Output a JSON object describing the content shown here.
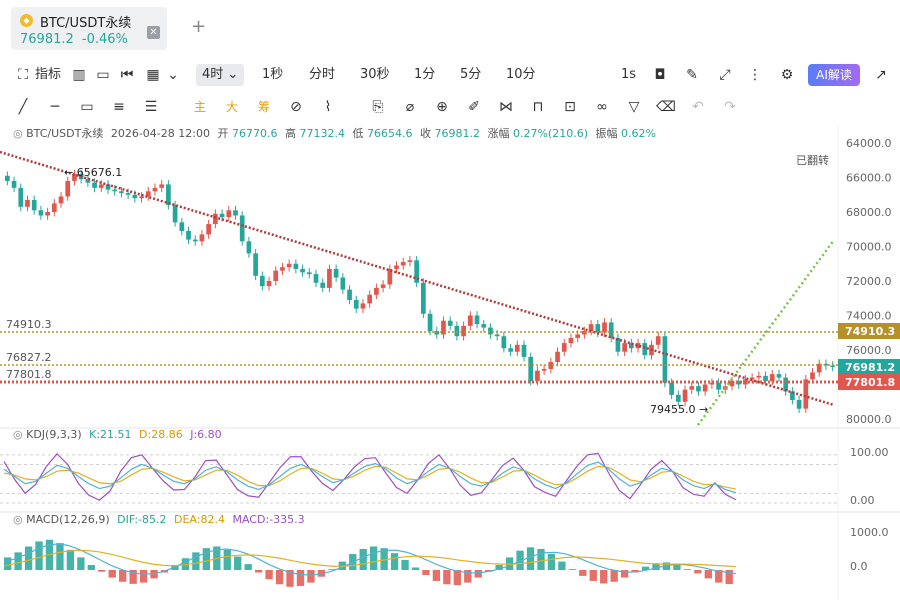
{
  "tab": {
    "title": "BTC/USDT永续",
    "price": "76981.2",
    "change": "-0.46%",
    "coin_icon": "binance-coin-icon",
    "close_icon": "close-icon",
    "add_icon": "plus-icon"
  },
  "toolbar1": {
    "indicators_label": "指标",
    "timeframe_selected": "4时",
    "timeframes": [
      "1秒",
      "分时",
      "30秒",
      "1分",
      "5分",
      "10分"
    ],
    "realtime_label": "1s",
    "ai_label": "AI解读",
    "icons": [
      "indicator-icon",
      "layout-icon",
      "replay-icon",
      "chart-type-icon",
      "chevron-down-icon",
      "camera-icon",
      "pen-icon",
      "expand-icon",
      "more-icon",
      "settings-icon",
      "share-icon"
    ]
  },
  "toolbar2": {
    "tools": [
      "trend-line-icon",
      "horizontal-line-icon",
      "rectangle-icon",
      "parallel-channel-icon",
      "fibonacci-icon"
    ],
    "text_tools": [
      "主",
      "大",
      "筹"
    ],
    "tools_right": [
      "measure-icon",
      "brush-icon",
      "bookmark-icon",
      "ruler-icon",
      "zoom-icon",
      "magic-brush-icon",
      "magnet-icon",
      "lock-icon",
      "note-icon",
      "link-icon",
      "filter-icon",
      "delete-icon",
      "undo-icon",
      "redo-icon"
    ]
  },
  "ohlc_header": {
    "symbol": "BTC/USDT永续",
    "time": "2026-04-28 12:00",
    "open_label": "开",
    "open": "76770.6",
    "high_label": "高",
    "high": "77132.4",
    "low_label": "低",
    "low": "76654.6",
    "close_label": "收",
    "close": "76981.2",
    "change_label": "涨幅",
    "change": "0.27%(210.6)",
    "amp_label": "振幅",
    "amp": "0.62%"
  },
  "flipped_label": "已翻转",
  "annotations": {
    "high_marker": "65676.1",
    "low_marker": "79455.0"
  },
  "levels": {
    "left": [
      "74910.3",
      "76827.2",
      "77801.8"
    ],
    "right_tags": [
      {
        "value": "74910.3",
        "color": "#b8902a"
      },
      {
        "value": "76981.2",
        "color": "#26a69a"
      },
      {
        "value": "77801.8",
        "color": "#e0574d"
      }
    ]
  },
  "kdj": {
    "label": "KDJ(9,3,3)",
    "k_label": "K:21.51",
    "d_label": "D:28.86",
    "j_label": "J:6.80",
    "axis_ticks": [
      "100.00",
      "0.00"
    ]
  },
  "macd": {
    "label": "MACD(12,26,9)",
    "dif_label": "DIF:-85.2",
    "dea_label": "DEA:82.4",
    "macd_label": "MACD:-335.3",
    "axis_ticks": [
      "1000.0",
      "0.0"
    ]
  },
  "colors": {
    "up": "#26a69a",
    "down": "#e0574d",
    "trendline": "#b03a3a",
    "green_trend": "#7cc242",
    "level_gold": "#b8902a",
    "k_line": "#9b4fc4",
    "d_line": "#e3b020",
    "j_line": "#4fb2d6"
  },
  "chart_data": {
    "type": "candlestick",
    "y_axis_inverted": true,
    "y_ticks": [
      64000,
      66000,
      68000,
      70000,
      72000,
      74000,
      76000,
      78000,
      80000
    ],
    "ylim": [
      63000,
      81000
    ],
    "candles_close": [
      66200,
      66600,
      67700,
      67300,
      67900,
      68200,
      68000,
      67500,
      67100,
      66200,
      65800,
      66100,
      66300,
      66600,
      66400,
      66700,
      66800,
      66900,
      67000,
      67200,
      67100,
      66800,
      66600,
      66400,
      67600,
      68600,
      69100,
      69600,
      69700,
      69300,
      68700,
      68100,
      68300,
      67900,
      68200,
      69700,
      70400,
      71700,
      72300,
      72000,
      71400,
      71200,
      71000,
      71300,
      71500,
      71600,
      72100,
      72400,
      71300,
      71800,
      72500,
      73100,
      73600,
      73300,
      72800,
      72400,
      72200,
      71300,
      71100,
      70900,
      70800,
      72100,
      73900,
      74900,
      75100,
      74300,
      74600,
      75200,
      74600,
      74000,
      74500,
      74700,
      75100,
      75200,
      75900,
      76100,
      75700,
      76400,
      77800,
      77200,
      77100,
      76700,
      76100,
      75600,
      75300,
      75100,
      74900,
      74500,
      75000,
      74400,
      75300,
      76100,
      75600,
      75900,
      75600,
      76300,
      75700,
      75200,
      77900,
      78600,
      79000,
      78300,
      78100,
      78400,
      78000,
      77900,
      78300,
      78100,
      77800,
      78000,
      77700,
      77600,
      77500,
      77800,
      77400,
      77600,
      78400,
      78900,
      79400,
      77700,
      77300,
      76800,
      76900,
      76981
    ],
    "kdj": {
      "k": [
        70,
        55,
        40,
        45,
        62,
        78,
        72,
        55,
        40,
        30,
        35,
        52,
        70,
        80,
        72,
        58,
        45,
        40,
        50,
        68,
        75,
        65,
        48,
        35,
        28,
        38,
        55,
        72,
        80,
        70,
        55,
        42,
        48,
        62,
        76,
        82,
        70,
        52,
        40,
        48,
        66,
        80,
        72,
        55,
        40,
        35,
        45,
        62,
        75,
        68,
        50,
        38,
        30,
        42,
        60,
        78,
        85,
        70,
        50,
        35,
        42,
        58,
        72,
        66,
        48,
        36,
        30,
        40,
        28,
        21.5
      ],
      "d": [
        62,
        58,
        50,
        48,
        55,
        66,
        68,
        62,
        52,
        42,
        40,
        45,
        58,
        70,
        72,
        64,
        54,
        46,
        48,
        58,
        68,
        68,
        58,
        45,
        36,
        36,
        46,
        60,
        72,
        72,
        62,
        50,
        48,
        56,
        68,
        76,
        74,
        62,
        50,
        48,
        58,
        70,
        72,
        64,
        52,
        42,
        43,
        54,
        66,
        68,
        58,
        46,
        38,
        40,
        52,
        66,
        76,
        74,
        62,
        48,
        44,
        52,
        64,
        66,
        56,
        45,
        38,
        39,
        33,
        28.9
      ],
      "j": [
        86,
        49,
        20,
        39,
        76,
        102,
        80,
        41,
        16,
        6,
        25,
        66,
        94,
        100,
        72,
        46,
        27,
        28,
        54,
        88,
        89,
        59,
        28,
        15,
        12,
        42,
        73,
        96,
        96,
        66,
        41,
        26,
        48,
        74,
        92,
        94,
        62,
        32,
        20,
        48,
        82,
        100,
        72,
        37,
        16,
        21,
        49,
        78,
        93,
        68,
        34,
        22,
        14,
        46,
        76,
        100,
        103,
        62,
        26,
        9,
        38,
        70,
        88,
        66,
        32,
        18,
        14,
        42,
        18,
        6.8
      ]
    },
    "macd": {
      "hist": [
        300,
        420,
        560,
        680,
        720,
        640,
        480,
        300,
        120,
        -40,
        -180,
        -280,
        -330,
        -300,
        -200,
        -60,
        120,
        280,
        420,
        520,
        560,
        480,
        320,
        140,
        -60,
        -220,
        -340,
        -400,
        -380,
        -300,
        -160,
        20,
        200,
        380,
        500,
        560,
        520,
        400,
        240,
        60,
        -120,
        -260,
        -340,
        -360,
        -300,
        -180,
        -40,
        120,
        300,
        460,
        540,
        500,
        380,
        200,
        20,
        -140,
        -260,
        -320,
        -280,
        -180,
        -60,
        80,
        160,
        180,
        120,
        20,
        -80,
        -200,
        -300,
        -335.3
      ],
      "dif": [
        200,
        260,
        360,
        480,
        580,
        620,
        590,
        500,
        380,
        250,
        120,
        20,
        -60,
        -100,
        -90,
        -40,
        60,
        180,
        300,
        410,
        480,
        500,
        460,
        380,
        260,
        130,
        20,
        -60,
        -110,
        -120,
        -90,
        -20,
        80,
        200,
        320,
        420,
        470,
        470,
        420,
        330,
        220,
        110,
        20,
        -40,
        -70,
        -60,
        -20,
        50,
        140,
        250,
        350,
        410,
        420,
        380,
        300,
        200,
        100,
        20,
        -30,
        -50,
        -30,
        20,
        80,
        120,
        130,
        100,
        50,
        -10,
        -50,
        -85.2
      ],
      "dea": [
        100,
        150,
        210,
        280,
        350,
        410,
        450,
        470,
        460,
        430,
        380,
        320,
        250,
        190,
        140,
        110,
        100,
        120,
        160,
        210,
        270,
        320,
        350,
        360,
        350,
        320,
        280,
        230,
        180,
        140,
        110,
        90,
        90,
        110,
        150,
        200,
        250,
        290,
        320,
        330,
        320,
        300,
        270,
        230,
        200,
        170,
        150,
        140,
        140,
        160,
        190,
        230,
        270,
        300,
        310,
        300,
        280,
        260,
        230,
        200,
        170,
        150,
        140,
        140,
        140,
        135,
        125,
        110,
        95,
        82.4
      ]
    }
  }
}
